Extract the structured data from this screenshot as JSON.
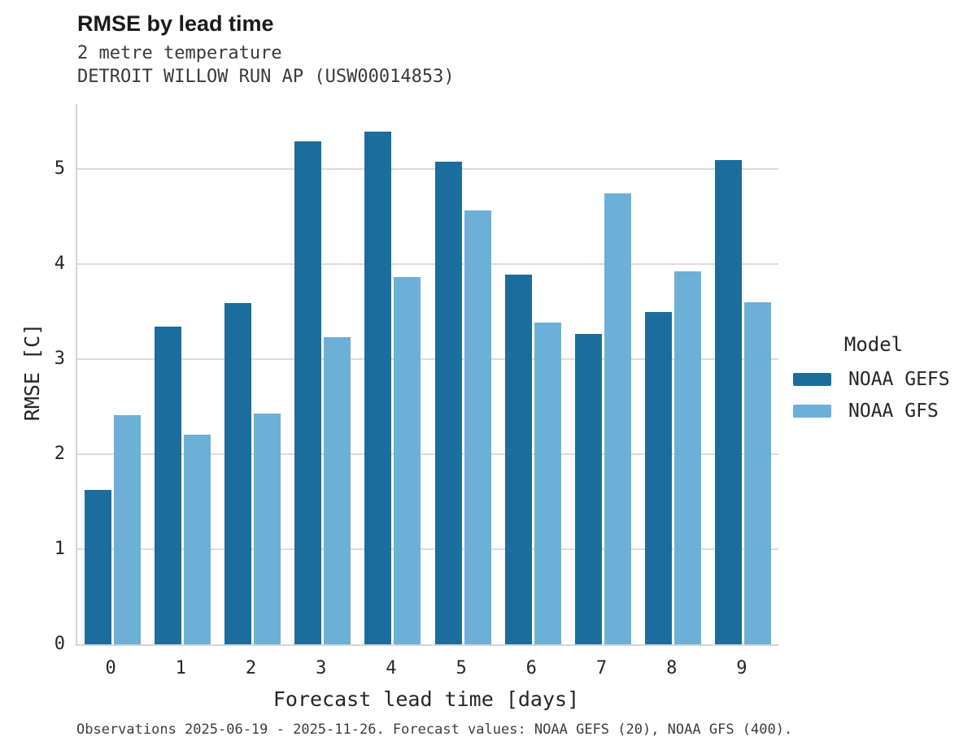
{
  "header": {
    "title": "RMSE by lead time",
    "subtitle_line1": "2 metre temperature",
    "subtitle_line2": "DETROIT WILLOW RUN AP (USW00014853)"
  },
  "legend": {
    "title": "Model",
    "items": [
      {
        "label": "NOAA GEFS",
        "color": "#1b6d9d"
      },
      {
        "label": "NOAA GFS",
        "color": "#6cb0d8"
      }
    ]
  },
  "footer": {
    "text": "Observations 2025-06-19 - 2025-11-26. Forecast values: NOAA GEFS (20), NOAA GFS (400)."
  },
  "chart_data": {
    "type": "bar",
    "title": "RMSE by lead time",
    "subtitle": [
      "2 metre temperature",
      "DETROIT WILLOW RUN AP (USW00014853)"
    ],
    "xlabel": "Forecast lead time [days]",
    "ylabel": "RMSE [C]",
    "categories": [
      "0",
      "1",
      "2",
      "3",
      "4",
      "5",
      "6",
      "7",
      "8",
      "9"
    ],
    "series": [
      {
        "name": "NOAA GEFS",
        "color": "#1b6d9d",
        "values": [
          1.62,
          3.34,
          3.59,
          5.29,
          5.39,
          5.07,
          3.89,
          3.26,
          3.49,
          5.09
        ]
      },
      {
        "name": "NOAA GFS",
        "color": "#6cb0d8",
        "values": [
          2.41,
          2.2,
          2.43,
          3.23,
          3.86,
          4.56,
          3.38,
          4.74,
          3.92,
          3.6
        ]
      }
    ],
    "yticks": [
      0,
      1,
      2,
      3,
      4,
      5
    ],
    "ylim": [
      0,
      5.68
    ],
    "grid": "horizontal",
    "legend_title": "Model",
    "legend_position": "right",
    "gridline_color": "#dcdcdc",
    "spine_color": "#d4d4d4"
  }
}
